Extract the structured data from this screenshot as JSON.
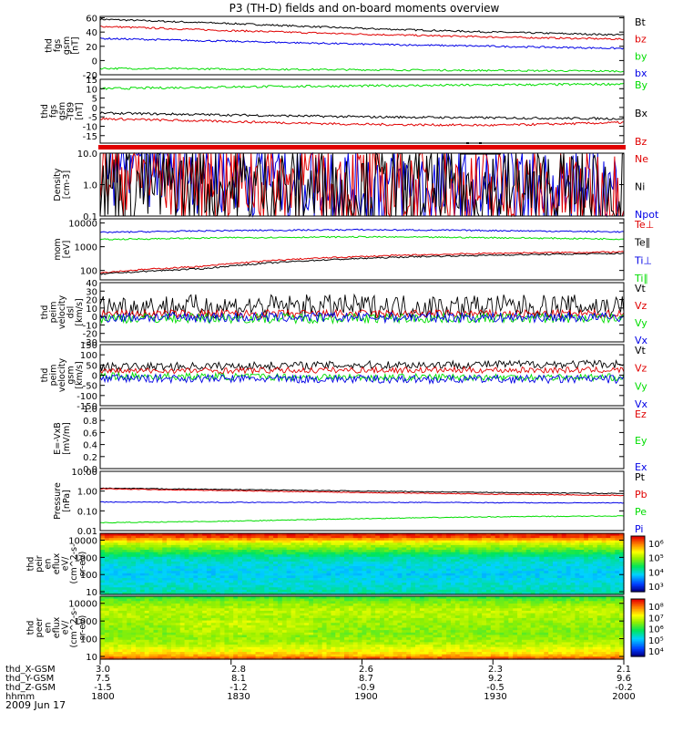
{
  "title": "P3 (TH-D) fields and on-board moments overview",
  "date_label": "2009 Jun 17",
  "colors": {
    "black": "#000000",
    "red": "#e00000",
    "green": "#00dd00",
    "blue": "#0000e6"
  },
  "chart_data": [
    {
      "type": "line",
      "ylabel": [
        "thd",
        "fgs",
        "gsm",
        "[nT]"
      ],
      "yticks": [
        "60",
        "40",
        "20",
        "0",
        "-20"
      ],
      "ylim": [
        -20,
        62
      ],
      "legend": [
        {
          "name": "Bt",
          "color": "black"
        },
        {
          "name": "bz",
          "color": "red"
        },
        {
          "name": "by",
          "color": "green"
        },
        {
          "name": "bx",
          "color": "blue"
        }
      ],
      "series": [
        {
          "name": "Bt",
          "color": "black",
          "x": [
            0,
            0.25,
            0.5,
            0.75,
            1
          ],
          "y": [
            58,
            52,
            45,
            40,
            36
          ]
        },
        {
          "name": "bz",
          "color": "red",
          "x": [
            0,
            0.25,
            0.5,
            0.75,
            1
          ],
          "y": [
            48,
            42,
            37,
            33,
            30
          ]
        },
        {
          "name": "by",
          "color": "green",
          "x": [
            0,
            0.25,
            0.5,
            0.75,
            1
          ],
          "y": [
            -11,
            -12,
            -13,
            -14,
            -15
          ]
        },
        {
          "name": "bx",
          "color": "blue",
          "x": [
            0,
            0.25,
            0.5,
            0.75,
            1
          ],
          "y": [
            31,
            27,
            23,
            20,
            17
          ]
        }
      ]
    },
    {
      "type": "line",
      "ylabel": [
        "thd",
        "fgs",
        "gsm",
        "-T89",
        "[nT]"
      ],
      "yticks": [
        "15",
        "10",
        "5",
        "0",
        "-5",
        "-10",
        "-15"
      ],
      "ylim": [
        -19,
        15
      ],
      "legend": [
        {
          "name": "By",
          "color": "green"
        },
        {
          "name": "Bx",
          "color": "black"
        },
        {
          "name": "Bz",
          "color": "red"
        }
      ],
      "series": [
        {
          "name": "By",
          "color": "green",
          "x": [
            0,
            0.25,
            0.5,
            0.75,
            1
          ],
          "y": [
            10,
            11,
            11.5,
            12,
            12.5
          ]
        },
        {
          "name": "Bx",
          "color": "black",
          "x": [
            0,
            0.25,
            0.5,
            0.75,
            1
          ],
          "y": [
            -3,
            -4,
            -5,
            -5.5,
            -6
          ]
        },
        {
          "name": "Bz",
          "color": "red",
          "x": [
            0,
            0.25,
            0.5,
            0.75,
            1
          ],
          "y": [
            -6,
            -7.5,
            -9,
            -9.5,
            -8
          ]
        }
      ]
    },
    {
      "type": "line",
      "ylabel": [
        "Density",
        "[cm-3]"
      ],
      "log": true,
      "yticks": [
        "10.0",
        "1.0",
        "0.1"
      ],
      "ylim": [
        0.1,
        10
      ],
      "legend": [
        {
          "name": "Ne",
          "color": "red"
        },
        {
          "name": "Ni",
          "color": "black"
        },
        {
          "name": "Npot",
          "color": "blue"
        }
      ],
      "series": [
        {
          "name": "Npot",
          "color": "blue",
          "x": [
            0,
            0.1,
            0.2,
            0.3,
            0.4,
            0.5,
            0.6,
            0.8,
            1
          ],
          "y": [
            7,
            5,
            3.5,
            2.5,
            1.8,
            1.0,
            0.65,
            0.6,
            0.55
          ]
        },
        {
          "name": "Ne",
          "color": "red",
          "x": [
            0,
            0.1,
            0.2,
            0.35,
            0.5,
            0.6,
            0.8,
            1
          ],
          "y": [
            2.6,
            2,
            1.6,
            1.3,
            0.9,
            0.7,
            0.6,
            0.55
          ]
        },
        {
          "name": "Ni",
          "color": "black",
          "x": [
            0,
            0.2,
            0.4,
            0.6,
            0.8,
            1
          ],
          "y": [
            0.95,
            0.85,
            0.75,
            0.62,
            0.6,
            0.55
          ]
        }
      ]
    },
    {
      "type": "line",
      "ylabel": [
        "mom",
        "[eV]"
      ],
      "log": true,
      "yticks": [
        "10000",
        "1000",
        "100"
      ],
      "ylim": [
        40,
        15000
      ],
      "legend": [
        {
          "name": "Te⊥",
          "color": "red"
        },
        {
          "name": "Te∥",
          "color": "black"
        },
        {
          "name": "Ti⊥",
          "color": "blue"
        },
        {
          "name": "Ti∥",
          "color": "green"
        }
      ],
      "series": [
        {
          "name": "Ti⊥",
          "color": "blue",
          "x": [
            0,
            0.25,
            0.5,
            0.75,
            1
          ],
          "y": [
            4000,
            4800,
            5200,
            4800,
            4200
          ]
        },
        {
          "name": "Ti∥",
          "color": "green",
          "x": [
            0,
            0.25,
            0.5,
            0.75,
            1
          ],
          "y": [
            2000,
            2400,
            2600,
            2400,
            2100
          ]
        },
        {
          "name": "Te⊥",
          "color": "red",
          "x": [
            0,
            0.2,
            0.4,
            0.6,
            0.8,
            1
          ],
          "y": [
            80,
            150,
            320,
            450,
            550,
            600
          ]
        },
        {
          "name": "Te∥",
          "color": "black",
          "x": [
            0,
            0.2,
            0.4,
            0.6,
            0.8,
            1
          ],
          "y": [
            70,
            120,
            260,
            380,
            460,
            520
          ]
        }
      ]
    },
    {
      "type": "line",
      "ylabel": [
        "thd",
        "peim",
        "velocity",
        "dsl",
        "[km/s]"
      ],
      "yticks": [
        "40",
        "30",
        "20",
        "10",
        "0",
        "-10",
        "-20",
        "-30"
      ],
      "ylim": [
        -30,
        40
      ],
      "legend": [
        {
          "name": "Vt",
          "color": "black"
        },
        {
          "name": "Vz",
          "color": "red"
        },
        {
          "name": "Vy",
          "color": "green"
        },
        {
          "name": "Vx",
          "color": "blue"
        }
      ],
      "series": [
        {
          "name": "Vt",
          "color": "black",
          "x": [
            0,
            1
          ],
          "y": [
            12,
            12
          ]
        },
        {
          "name": "Vz",
          "color": "red",
          "x": [
            0,
            1
          ],
          "y": [
            3,
            3
          ]
        },
        {
          "name": "Vy",
          "color": "green",
          "x": [
            0,
            1
          ],
          "y": [
            -2,
            -2
          ]
        },
        {
          "name": "Vx",
          "color": "blue",
          "x": [
            0,
            1
          ],
          "y": [
            -1,
            -1
          ]
        }
      ]
    },
    {
      "type": "line",
      "ylabel": [
        "thd",
        "peim",
        "velocity",
        "gsm",
        "[km/s]"
      ],
      "yticks": [
        "150",
        "100",
        "50",
        "0",
        "-50",
        "-100",
        "-150"
      ],
      "ylim": [
        -150,
        150
      ],
      "legend": [
        {
          "name": "Vt",
          "color": "black"
        },
        {
          "name": "Vz",
          "color": "red"
        },
        {
          "name": "Vy",
          "color": "green"
        },
        {
          "name": "Vx",
          "color": "blue"
        }
      ],
      "series": [
        {
          "name": "Vt",
          "color": "black",
          "x": [
            0,
            0.5,
            1
          ],
          "y": [
            40,
            50,
            55
          ]
        },
        {
          "name": "Vz",
          "color": "red",
          "x": [
            0,
            0.5,
            1
          ],
          "y": [
            20,
            25,
            25
          ]
        },
        {
          "name": "Vy",
          "color": "green",
          "x": [
            0,
            0.5,
            1
          ],
          "y": [
            -5,
            -10,
            -10
          ]
        },
        {
          "name": "Vx",
          "color": "blue",
          "x": [
            0,
            0.5,
            1
          ],
          "y": [
            -15,
            -20,
            -20
          ]
        }
      ]
    },
    {
      "type": "line",
      "ylabel": [
        "E=-VxB",
        "[mV/m]"
      ],
      "yticks": [
        "1.0",
        "0.8",
        "0.6",
        "0.4",
        "0.2",
        "0.0"
      ],
      "ylim": [
        0,
        1
      ],
      "legend": [
        {
          "name": "Ez",
          "color": "red"
        },
        {
          "name": "Ey",
          "color": "green"
        },
        {
          "name": "Ex",
          "color": "blue"
        }
      ],
      "series": []
    },
    {
      "type": "line",
      "ylabel": [
        "Pressure",
        "[nPa]"
      ],
      "log": true,
      "yticks": [
        "10.00",
        "1.00",
        "0.10",
        "0.01"
      ],
      "ylim": [
        0.01,
        10
      ],
      "legend": [
        {
          "name": "Pt",
          "color": "black"
        },
        {
          "name": "Pb",
          "color": "red"
        },
        {
          "name": "Pe",
          "color": "green"
        },
        {
          "name": "Pi",
          "color": "blue"
        }
      ],
      "series": [
        {
          "name": "Pt",
          "color": "black",
          "x": [
            0,
            0.25,
            0.5,
            0.75,
            1
          ],
          "y": [
            1.4,
            1.2,
            1.0,
            0.85,
            0.75
          ]
        },
        {
          "name": "Pb",
          "color": "red",
          "x": [
            0,
            0.25,
            0.5,
            0.75,
            1
          ],
          "y": [
            1.3,
            1.05,
            0.85,
            0.7,
            0.6
          ]
        },
        {
          "name": "Pi",
          "color": "blue",
          "x": [
            0,
            0.25,
            0.5,
            0.75,
            1
          ],
          "y": [
            0.28,
            0.27,
            0.27,
            0.26,
            0.25
          ]
        },
        {
          "name": "Pe",
          "color": "green",
          "x": [
            0,
            0.25,
            0.5,
            0.75,
            1
          ],
          "y": [
            0.025,
            0.03,
            0.04,
            0.05,
            0.055
          ]
        }
      ]
    },
    {
      "type": "heatmap",
      "ylabel": [
        "thd",
        "peir",
        "en",
        "eflux",
        "eV/",
        "(cm^2-s-",
        "sr-eV)"
      ],
      "log": true,
      "yticks": [
        "10000",
        "1000",
        "100",
        "10"
      ],
      "ylim": [
        7,
        25000
      ],
      "colorbar_ticks": [
        "10⁶",
        "10⁵",
        "10⁴",
        "10³"
      ],
      "profile": [
        [
          25000,
          1
        ],
        [
          15000,
          0.92
        ],
        [
          7000,
          0.68
        ],
        [
          3000,
          0.55
        ],
        [
          1000,
          0.38
        ],
        [
          300,
          0.32
        ],
        [
          100,
          0.3
        ],
        [
          30,
          0.34
        ],
        [
          12,
          0.36
        ],
        [
          7,
          0.4
        ]
      ]
    },
    {
      "type": "heatmap",
      "ylabel": [
        "thd",
        "peer",
        "en",
        "eflux",
        "eV/",
        "(cm^2-s-",
        "sr-eV)"
      ],
      "log": true,
      "yticks": [
        "10000",
        "1000",
        "100",
        "10"
      ],
      "ylim": [
        7,
        25000
      ],
      "colorbar_ticks": [
        "10⁸",
        "10⁷",
        "10⁶",
        "10⁵",
        "10⁴"
      ],
      "profile": [
        [
          25000,
          0.48
        ],
        [
          12000,
          0.58
        ],
        [
          4000,
          0.65
        ],
        [
          1500,
          0.62
        ],
        [
          600,
          0.6
        ],
        [
          200,
          0.58
        ],
        [
          60,
          0.62
        ],
        [
          20,
          0.72
        ],
        [
          10,
          0.82
        ],
        [
          7,
          0.95
        ]
      ]
    }
  ],
  "orbit_table": {
    "rows": [
      {
        "label": "thd_X-GSM",
        "values": [
          "3.0",
          "2.8",
          "2.6",
          "2.3",
          "2.1"
        ]
      },
      {
        "label": "thd_Y-GSM",
        "values": [
          "7.5",
          "8.1",
          "8.7",
          "9.2",
          "9.6"
        ]
      },
      {
        "label": "thd_Z-GSM",
        "values": [
          "-1.5",
          "-1.2",
          "-0.9",
          "-0.5",
          "-0.2"
        ]
      },
      {
        "label": "hhmm",
        "values": [
          "1800",
          "1830",
          "1900",
          "1930",
          "2000"
        ]
      }
    ]
  }
}
